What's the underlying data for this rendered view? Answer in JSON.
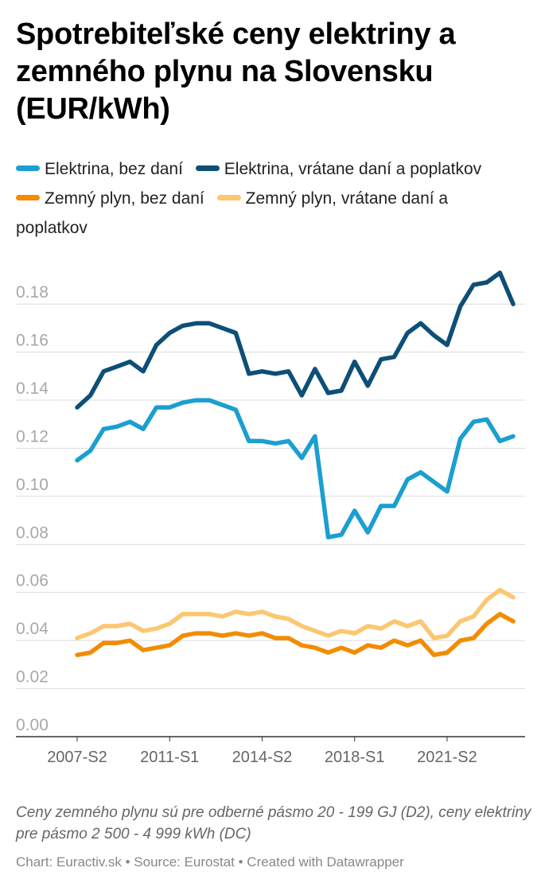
{
  "title": "Spotrebiteľské ceny elektriny a zemného plynu na Slovensku (EUR/kWh)",
  "note": "Ceny zemného plynu sú pre odberné pásmo 20 - 199 GJ (D2), ceny elektriny pre pásmo 2 500 - 4 999 kWh (DC)",
  "footer": "Chart: Euractiv.sk • Source: Eurostat • Created with Datawrapper",
  "chart_data": {
    "type": "line",
    "title": "Spotrebiteľské ceny elektriny a zemného plynu na Slovensku (EUR/kWh)",
    "xlabel": "",
    "ylabel": "",
    "ylim": [
      0,
      0.19
    ],
    "grid": true,
    "legend_position": "top",
    "y_ticks": [
      "0.00",
      "0.02",
      "0.04",
      "0.06",
      "0.08",
      "0.10",
      "0.12",
      "0.14",
      "0.16",
      "0.18"
    ],
    "x_tick_labels": [
      "2007-S2",
      "2011-S1",
      "2014-S2",
      "2018-S1",
      "2021-S2"
    ],
    "x": [
      "2007-S2",
      "2008-S1",
      "2008-S2",
      "2009-S1",
      "2009-S2",
      "2010-S1",
      "2010-S2",
      "2011-S1",
      "2011-S2",
      "2012-S1",
      "2012-S2",
      "2013-S1",
      "2013-S2",
      "2014-S1",
      "2014-S2",
      "2015-S1",
      "2015-S2",
      "2016-S1",
      "2016-S2",
      "2017-S1",
      "2017-S2",
      "2018-S1",
      "2018-S2",
      "2019-S1",
      "2019-S2",
      "2020-S1",
      "2020-S2",
      "2021-S1",
      "2021-S2",
      "2022-S1",
      "2022-S2",
      "2023-S1",
      "2023-S2",
      "2024-S1"
    ],
    "series": [
      {
        "name": "Elektrina, bez daní",
        "color": "#1a9fd0",
        "values": [
          0.115,
          0.119,
          0.128,
          0.129,
          0.131,
          0.128,
          0.137,
          0.137,
          0.139,
          0.14,
          0.14,
          0.138,
          0.136,
          0.123,
          0.123,
          0.122,
          0.123,
          0.116,
          0.125,
          0.083,
          0.084,
          0.094,
          0.085,
          0.096,
          0.096,
          0.107,
          0.11,
          0.106,
          0.102,
          0.124,
          0.131,
          0.132,
          0.123,
          0.125
        ]
      },
      {
        "name": "Elektrina, vrátane daní a poplatkov",
        "color": "#0d4f76",
        "values": [
          0.137,
          0.142,
          0.152,
          0.154,
          0.156,
          0.152,
          0.163,
          0.168,
          0.171,
          0.172,
          0.172,
          0.17,
          0.168,
          0.151,
          0.152,
          0.151,
          0.152,
          0.142,
          0.153,
          0.143,
          0.144,
          0.156,
          0.146,
          0.157,
          0.158,
          0.168,
          0.172,
          0.167,
          0.163,
          0.179,
          0.188,
          0.189,
          0.193,
          0.18
        ]
      },
      {
        "name": "Zemný plyn, bez daní",
        "color": "#f28c00",
        "values": [
          0.034,
          0.035,
          0.039,
          0.039,
          0.04,
          0.036,
          0.037,
          0.038,
          0.042,
          0.043,
          0.043,
          0.042,
          0.043,
          0.042,
          0.043,
          0.041,
          0.041,
          0.038,
          0.037,
          0.035,
          0.037,
          0.035,
          0.038,
          0.037,
          0.04,
          0.038,
          0.04,
          0.034,
          0.035,
          0.04,
          0.041,
          0.047,
          0.051,
          0.048
        ]
      },
      {
        "name": "Zemný plyn, vrátane daní a poplatkov",
        "color": "#fbc771",
        "values": [
          0.041,
          0.043,
          0.046,
          0.046,
          0.047,
          0.044,
          0.045,
          0.047,
          0.051,
          0.051,
          0.051,
          0.05,
          0.052,
          0.051,
          0.052,
          0.05,
          0.049,
          0.046,
          0.044,
          0.042,
          0.044,
          0.043,
          0.046,
          0.045,
          0.048,
          0.046,
          0.048,
          0.041,
          0.042,
          0.048,
          0.05,
          0.057,
          0.061,
          0.058
        ]
      }
    ]
  }
}
